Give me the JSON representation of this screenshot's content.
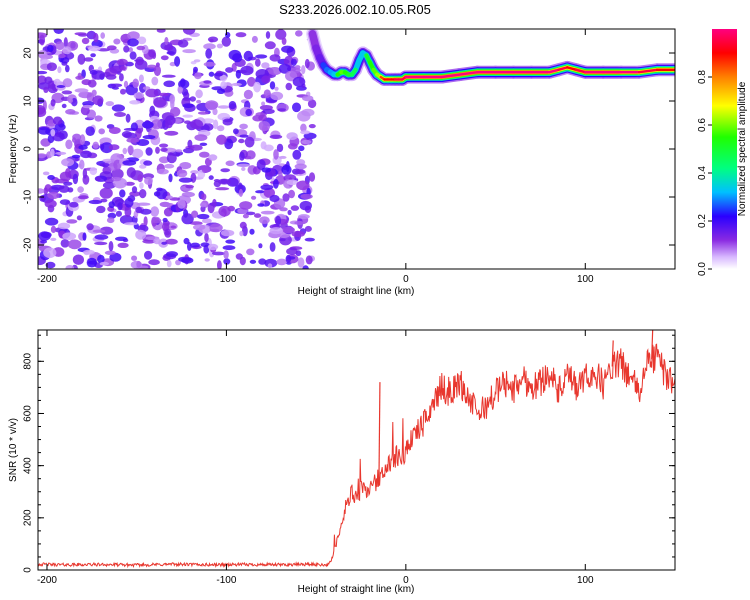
{
  "figure_title": "S233.2026.002.10.05.R05",
  "chart_data": [
    {
      "type": "heatmap",
      "xlabel": "Height of straight line (km)",
      "ylabel": "Frequency (Hz)",
      "xlim": [
        -205,
        150
      ],
      "ylim": [
        -25,
        25
      ],
      "xticks": [
        -200,
        -100,
        0,
        100
      ],
      "yticks": [
        -20,
        -10,
        0,
        10,
        20
      ],
      "noise_region_x": [
        -205,
        -52
      ],
      "noise_amplitude_range": [
        0.05,
        0.2
      ],
      "ridge": {
        "x": [
          -52,
          -50,
          -48,
          -46,
          -44,
          -42,
          -40,
          -38,
          -36,
          -34,
          -32,
          -30,
          -28,
          -26,
          -24,
          -22,
          -20,
          -18,
          -16,
          -14,
          -12,
          -10,
          -8,
          -6,
          -4,
          -2,
          0,
          10,
          20,
          30,
          40,
          50,
          60,
          70,
          80,
          85,
          90,
          95,
          100,
          110,
          120,
          130,
          140,
          150
        ],
        "frequency": [
          24,
          21,
          19,
          17.5,
          16.5,
          16,
          15.5,
          15.5,
          16,
          16,
          15.5,
          15.5,
          16.5,
          18.5,
          20,
          19.5,
          18,
          16.5,
          15.5,
          15,
          14.5,
          14.5,
          14.5,
          14.5,
          14.5,
          14.5,
          15,
          15,
          15,
          15.5,
          16,
          16,
          16,
          16,
          16,
          16.5,
          17,
          16.5,
          16,
          16,
          16,
          16,
          16.5,
          16.5
        ],
        "peak_amplitude": [
          0.3,
          0.35,
          0.4,
          0.45,
          0.5,
          0.55,
          0.6,
          0.7,
          0.75,
          0.75,
          0.7,
          0.65,
          0.6,
          0.6,
          0.6,
          0.65,
          0.7,
          0.75,
          0.8,
          0.85,
          0.9,
          0.9,
          0.9,
          0.95,
          0.95,
          0.95,
          1.0,
          1.0,
          1.0,
          1.0,
          1.0,
          1.0,
          1.0,
          1.0,
          1.0,
          0.95,
          0.9,
          0.95,
          1.0,
          1.0,
          1.0,
          0.95,
          0.9,
          0.9
        ]
      },
      "colorbar": {
        "label": "Normalized spectral amplitude",
        "range": [
          0,
          1
        ],
        "ticks": [
          "0.0",
          "0.2",
          "0.4",
          "0.6",
          "0.8"
        ],
        "tick_values": [
          0,
          0.2,
          0.4,
          0.6,
          0.8
        ]
      }
    },
    {
      "type": "line",
      "xlabel": "Height of straight line (km)",
      "ylabel": "SNR (10 * v/v)",
      "xlim": [
        -205,
        150
      ],
      "ylim": [
        0,
        920
      ],
      "xticks": [
        -200,
        -100,
        0,
        100
      ],
      "yticks": [
        0,
        200,
        400,
        600,
        800
      ],
      "series": [
        {
          "name": "SNR",
          "color": "#e8372e",
          "x": [
            -205,
            -190,
            -170,
            -150,
            -130,
            -110,
            -90,
            -70,
            -55,
            -43,
            -40,
            -37,
            -35,
            -33,
            -30,
            -27,
            -25,
            -22,
            -18,
            -15,
            -12,
            -10,
            -7,
            -5,
            -2,
            0,
            5,
            10,
            15,
            20,
            25,
            30,
            35,
            40,
            45,
            50,
            55,
            60,
            65,
            70,
            75,
            80,
            85,
            90,
            95,
            100,
            105,
            110,
            115,
            120,
            125,
            130,
            135,
            140,
            145,
            150
          ],
          "values": [
            22,
            20,
            21,
            19,
            22,
            20,
            21,
            20,
            22,
            20,
            60,
            150,
            200,
            260,
            300,
            260,
            320,
            300,
            340,
            330,
            380,
            400,
            410,
            440,
            420,
            470,
            520,
            560,
            640,
            700,
            680,
            720,
            660,
            600,
            630,
            680,
            720,
            690,
            740,
            700,
            720,
            760,
            680,
            740,
            700,
            730,
            760,
            710,
            780,
            790,
            740,
            680,
            800,
            820,
            740,
            730
          ],
          "spikes": [
            {
              "x": -15,
              "value": 720
            },
            {
              "x": 115,
              "value": 880
            },
            {
              "x": 137,
              "value": 920
            }
          ]
        }
      ]
    }
  ]
}
